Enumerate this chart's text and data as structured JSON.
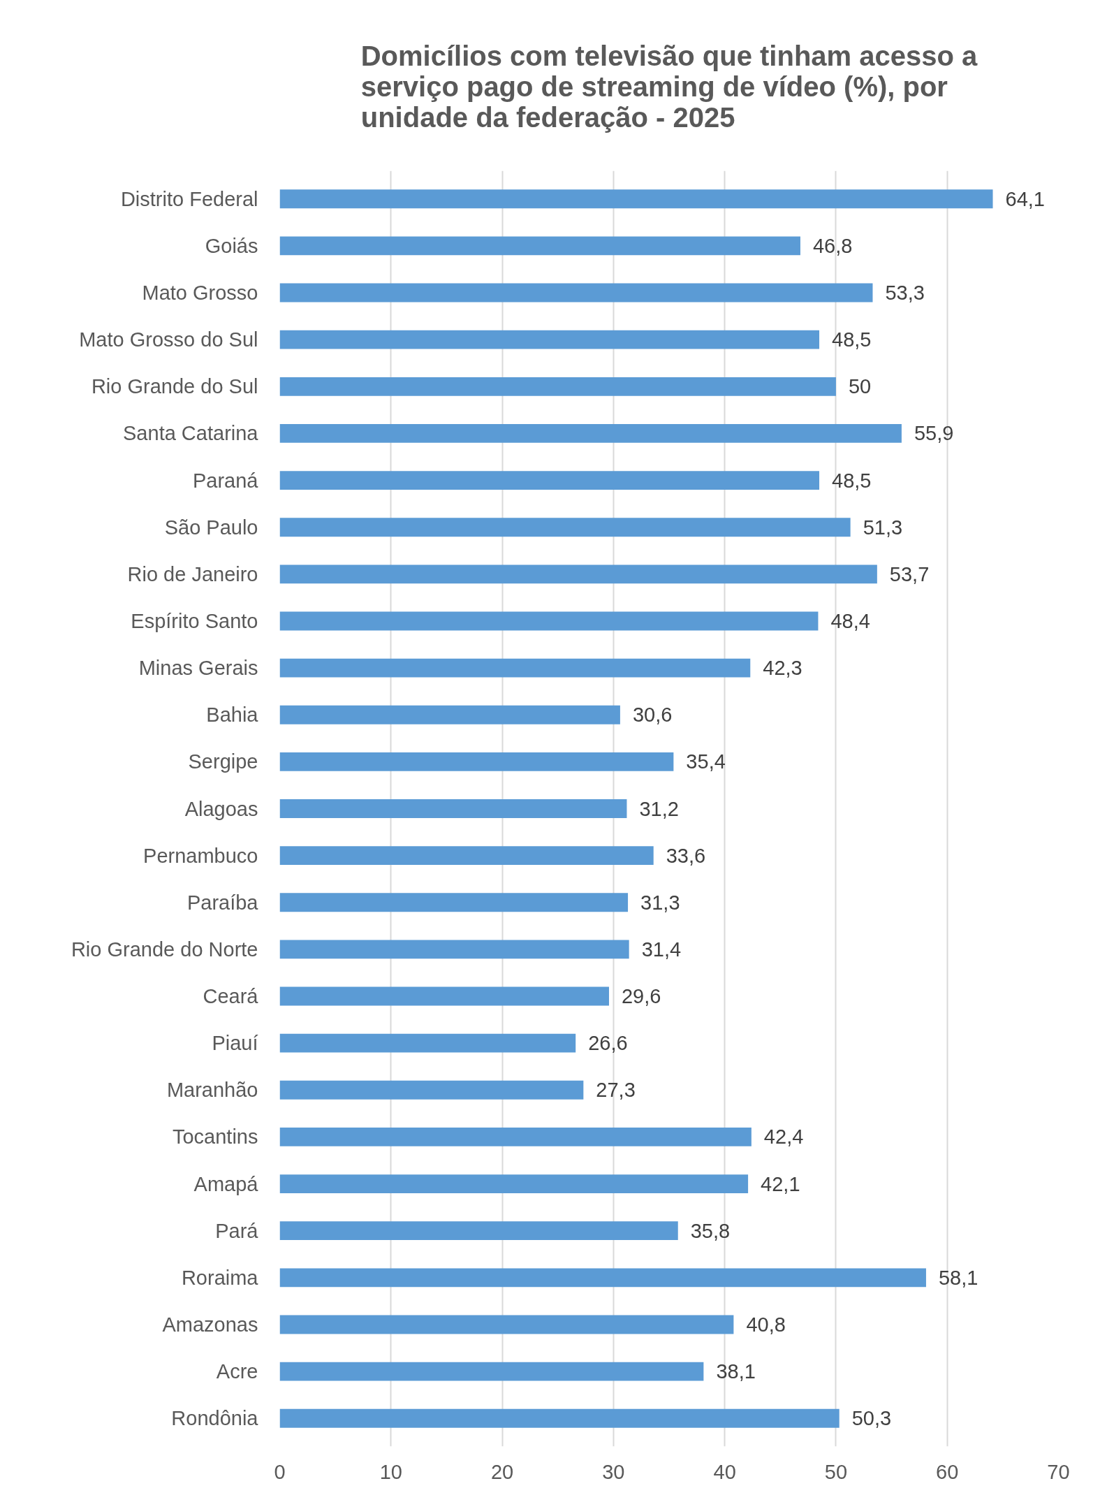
{
  "chart_data": {
    "type": "bar",
    "orientation": "horizontal",
    "title": "Domicílios com televisão que tinham acesso a serviço pago de streaming de vídeo (%), por unidade da federação - 2025",
    "categories": [
      "Distrito Federal",
      "Goiás",
      "Mato Grosso",
      "Mato Grosso do Sul",
      "Rio Grande do Sul",
      "Santa Catarina",
      "Paraná",
      "São Paulo",
      "Rio de Janeiro",
      "Espírito Santo",
      "Minas Gerais",
      "Bahia",
      "Sergipe",
      "Alagoas",
      "Pernambuco",
      "Paraíba",
      "Rio Grande do Norte",
      "Ceará",
      "Piauí",
      "Maranhão",
      "Tocantins",
      "Amapá",
      "Pará",
      "Roraima",
      "Amazonas",
      "Acre",
      "Rondônia"
    ],
    "values": [
      64.1,
      46.8,
      53.3,
      48.5,
      50,
      55.9,
      48.5,
      51.3,
      53.7,
      48.4,
      42.3,
      30.6,
      35.4,
      31.2,
      33.6,
      31.3,
      31.4,
      29.6,
      26.6,
      27.3,
      42.4,
      42.1,
      35.8,
      58.1,
      40.8,
      38.1,
      50.3
    ],
    "value_labels": [
      "64,1",
      "46,8",
      "53,3",
      "48,5",
      "50",
      "55,9",
      "48,5",
      "51,3",
      "53,7",
      "48,4",
      "42,3",
      "30,6",
      "35,4",
      "31,2",
      "33,6",
      "31,3",
      "31,4",
      "29,6",
      "26,6",
      "27,3",
      "42,4",
      "42,1",
      "35,8",
      "58,1",
      "40,8",
      "38,1",
      "50,3"
    ],
    "color": "#5b9bd5",
    "xlim": [
      0,
      70
    ],
    "xticks": [
      0,
      10,
      20,
      30,
      40,
      50,
      60,
      70
    ],
    "grid": "x"
  }
}
